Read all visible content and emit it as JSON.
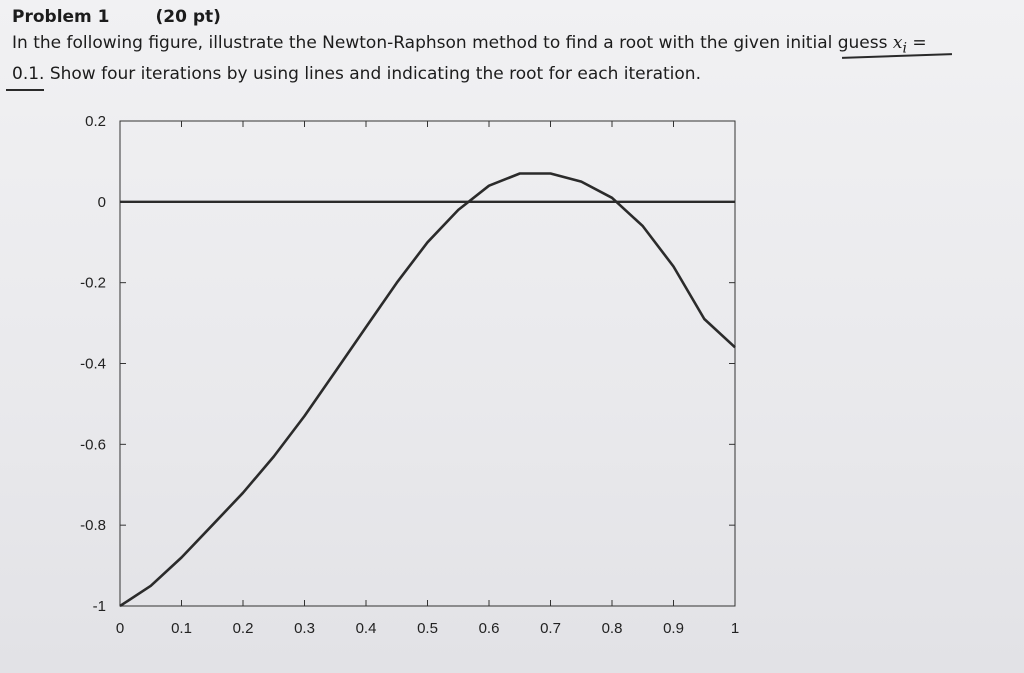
{
  "problem": {
    "title": "Problem 1",
    "points": "(20 pt)",
    "line1": "In the following figure, illustrate the Newton-Raphson method to find a root with the given initial guess",
    "var_base": "x",
    "var_sub": "i",
    "equals": "=",
    "line2": "0.1. Show four iterations by using lines and indicating the root for each iteration."
  },
  "chart_data": {
    "type": "line",
    "title": "",
    "xlabel": "",
    "ylabel": "",
    "xlim": [
      0,
      1
    ],
    "ylim": [
      -1,
      0.2
    ],
    "x_ticks": [
      "0",
      "0.1",
      "0.2",
      "0.3",
      "0.4",
      "0.5",
      "0.6",
      "0.7",
      "0.8",
      "0.9",
      "1"
    ],
    "y_ticks": [
      "0.2",
      "0",
      "-0.2",
      "-0.4",
      "-0.6",
      "-0.8",
      "-1"
    ],
    "grid": false,
    "series": [
      {
        "x": [
          0,
          0.05,
          0.1,
          0.15,
          0.2,
          0.25,
          0.3,
          0.35,
          0.4,
          0.45,
          0.5,
          0.55,
          0.6,
          0.65,
          0.7,
          0.75,
          0.8,
          0.85,
          0.9,
          0.95,
          1
        ],
        "y": [
          -1,
          -0.95,
          -0.88,
          -0.8,
          -0.72,
          -0.63,
          -0.53,
          -0.42,
          -0.31,
          -0.2,
          -0.1,
          -0.02,
          0.04,
          0.07,
          0.07,
          0.05,
          0.01,
          -0.06,
          -0.16,
          -0.29,
          -0.36
        ]
      },
      {
        "x": [
          0,
          1
        ],
        "y": [
          0,
          0
        ]
      }
    ]
  }
}
